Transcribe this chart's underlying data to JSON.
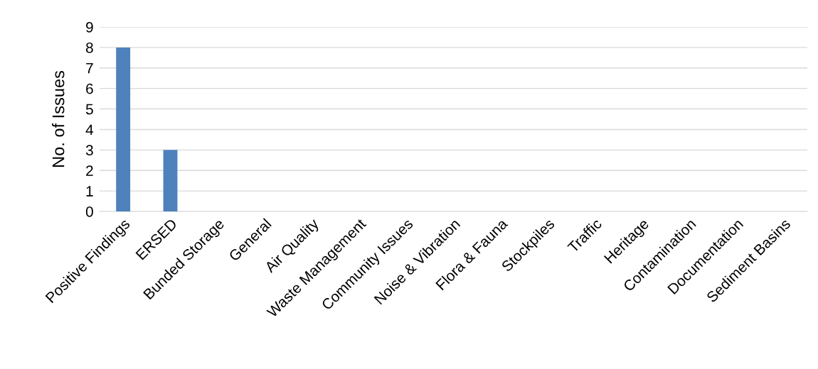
{
  "chart_data": {
    "type": "bar",
    "ylabel": "No. of Issues",
    "categories": [
      "Positive Findings",
      "ERSED",
      "Bunded Storage",
      "General",
      "Air Quality",
      "Waste Management",
      "Community Issues",
      "Noise & Vibration",
      "Flora & Fauna",
      "Stockpiles",
      "Traffic",
      "Heritage",
      "Contamination",
      "Documentation",
      "Sediment Basins"
    ],
    "values": [
      8,
      3,
      0,
      0,
      0,
      0,
      0,
      0,
      0,
      0,
      0,
      0,
      0,
      0,
      0
    ],
    "color": "#4f81bd",
    "ylim": [
      0,
      9
    ],
    "yticks": [
      0,
      1,
      2,
      3,
      4,
      5,
      6,
      7,
      8,
      9
    ],
    "grid": "y"
  }
}
